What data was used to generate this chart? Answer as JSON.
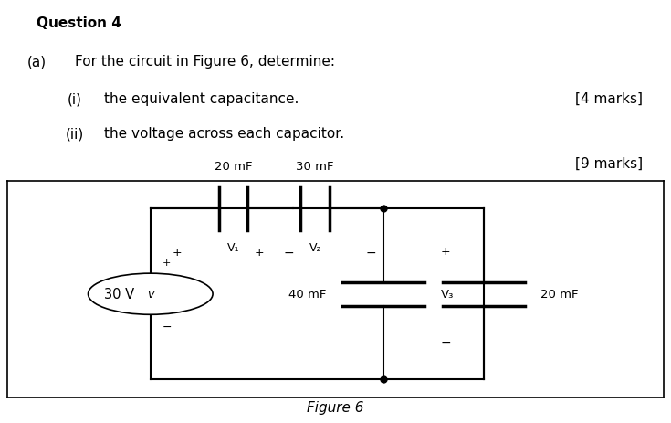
{
  "title": "Question 4",
  "text_a_left": "(a)",
  "text_a_right": "For the circuit in Figure 6, determine:",
  "text_i_num": "(i)",
  "text_i_body": "the equivalent capacitance.",
  "text_ii_num": "(ii)",
  "text_ii_body": "the voltage across each capacitor.",
  "marks_i": "[4 marks]",
  "marks_ii": "[9 marks]",
  "figure_label": "Figure 6",
  "bg_color": "#ffffff",
  "text_color": "#000000",
  "cap1_label": "20 mF",
  "cap2_label": "30 mF",
  "cap3_label": "40 mF",
  "cap4_label": "20 mF",
  "v1_label": "V₁",
  "v2_label": "V₂",
  "v3_label": "V₃",
  "source_label": "30 V",
  "font_family": "DejaVu Sans"
}
